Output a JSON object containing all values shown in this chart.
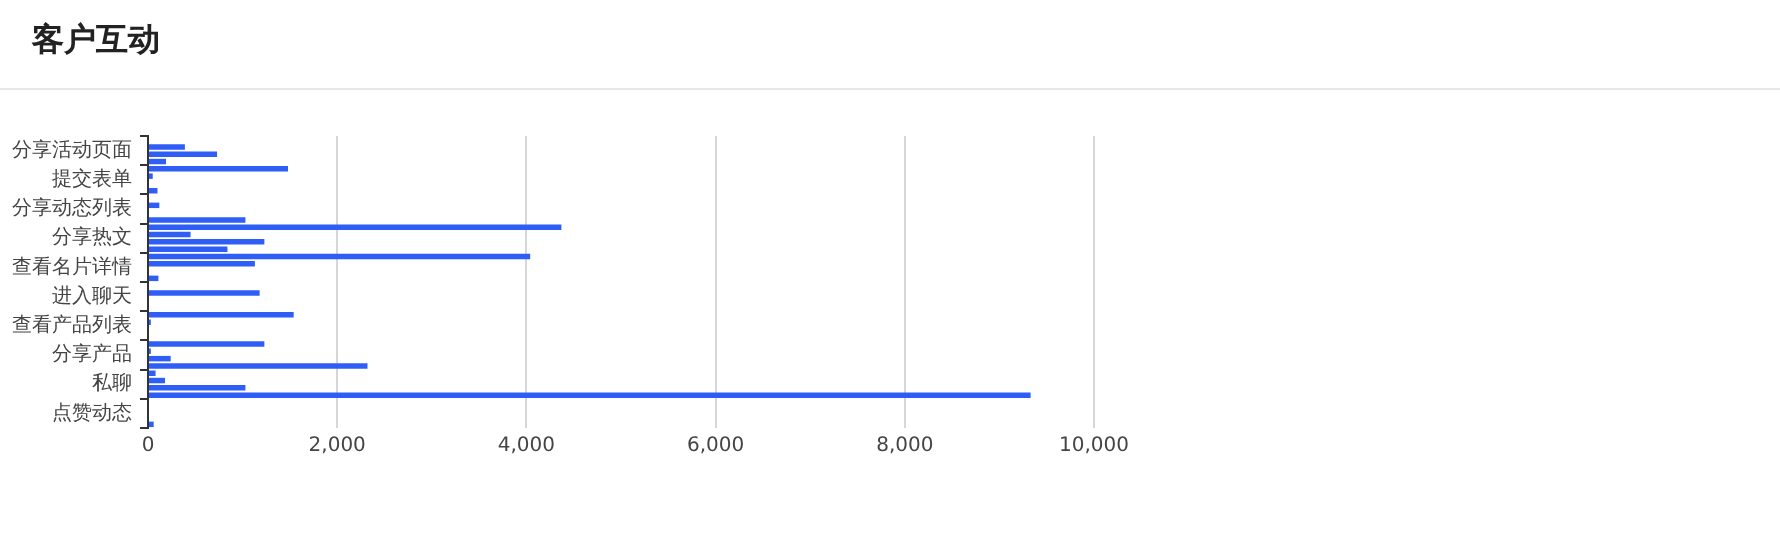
{
  "chart_data": {
    "type": "bar",
    "orientation": "horizontal",
    "title": "客户互动",
    "categories": [
      "分享活动页面",
      "提交表单",
      "分享动态列表",
      "分享热文",
      "查看名片详情",
      "进入聊天",
      "查看产品列表",
      "分享产品",
      "私聊",
      "点赞动态"
    ],
    "series": [
      {
        "color": "#2f5ef6",
        "values": [
          null,
          1480,
          null,
          4370,
          4040,
          null,
          1540,
          1230,
          80,
          null
        ]
      },
      {
        "color": "#2f5ef6",
        "values": [
          390,
          50,
          120,
          450,
          1130,
          1180,
          30,
          30,
          180,
          null
        ]
      },
      {
        "color": "#2f5ef6",
        "values": [
          730,
          null,
          null,
          1230,
          null,
          null,
          null,
          240,
          1030,
          null
        ]
      },
      {
        "color": "#2f5ef6",
        "values": [
          190,
          100,
          1030,
          840,
          110,
          null,
          null,
          2320,
          9330,
          60
        ]
      }
    ],
    "xlim": [
      0,
      10000
    ],
    "xticks": [
      0,
      {
        "value": 2000,
        "label": "2,000"
      },
      {
        "value": 4000,
        "label": "4,000"
      },
      {
        "value": 6000,
        "label": "6,000"
      },
      {
        "value": 8000,
        "label": "8,000"
      },
      {
        "value": 10000,
        "label": "10,000"
      }
    ],
    "grid": "x",
    "legend": false
  }
}
